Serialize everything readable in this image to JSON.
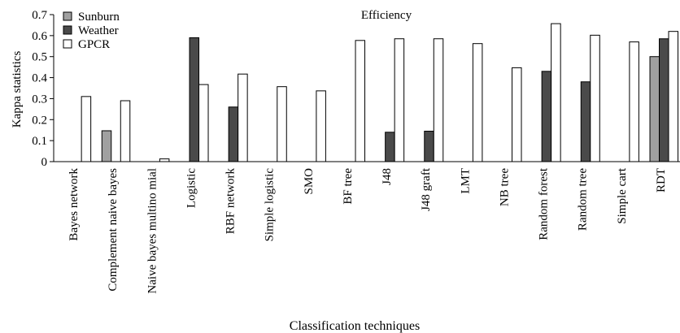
{
  "chart_data": {
    "type": "bar",
    "title": "Efficiency",
    "xlabel": "Classification techniques",
    "ylabel": "Kappa statistics",
    "ylim": [
      0,
      0.7
    ],
    "yticks": [
      "0",
      "0.1",
      "0.2",
      "0.3",
      "0.4",
      "0.5",
      "0.6",
      "0.7"
    ],
    "grid": false,
    "legend_position": "top-left",
    "categories": [
      "Bayes network",
      "Complement naive bayes",
      "Naive bayes multino mial",
      "Logistic",
      "RBF network",
      "Simple logistic",
      "SMO",
      "BF tree",
      "J48",
      "J48 graft",
      "LMT",
      "NB tree",
      "Random forest",
      "Random tree",
      "Simple cart",
      "RDT"
    ],
    "series": [
      {
        "name": "Sunburn",
        "color": "#a0a0a0",
        "values": [
          0,
          0.147,
          0,
          0,
          0,
          0,
          0,
          0,
          0,
          0,
          0,
          0,
          0,
          0,
          0,
          0.5
        ]
      },
      {
        "name": "Weather",
        "color": "#4a4a4a",
        "values": [
          0,
          0,
          0,
          0.59,
          0.26,
          0,
          0,
          0,
          0.14,
          0.145,
          0,
          0,
          0.43,
          0.38,
          0,
          0.585
        ]
      },
      {
        "name": "GPCR",
        "color": "#ffffff",
        "values": [
          0.31,
          0.29,
          0.013,
          0.367,
          0.417,
          0.357,
          0.337,
          0.577,
          0.585,
          0.585,
          0.562,
          0.447,
          0.657,
          0.602,
          0.57,
          0.62
        ]
      }
    ]
  }
}
